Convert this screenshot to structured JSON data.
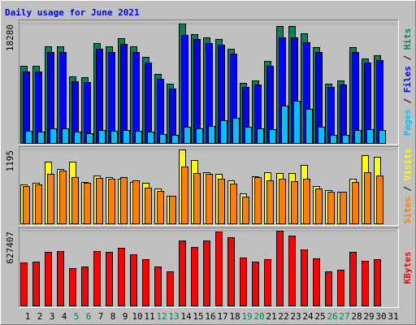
{
  "chart_data": [
    {
      "type": "bar",
      "title": "Daily usage for June 2021",
      "ylim": [
        0,
        18280
      ],
      "yticks": [
        18280
      ],
      "legend_separator": "/",
      "series": [
        {
          "name": "Hits",
          "color": "#00805c",
          "values": [
            11814,
            11814,
            14798,
            14798,
            10197,
            10073,
            15296,
            14798,
            16042,
            14798,
            13182,
            10570,
            9078,
            18280,
            16664,
            16166,
            15917,
            14425,
            9202,
            9575,
            12560,
            17907,
            17907,
            16788,
            14674,
            9078,
            9575,
            14674,
            12933,
            13430,
            null
          ]
        },
        {
          "name": "Files",
          "color": "#0000ff",
          "values": [
            10943,
            10943,
            13928,
            13928,
            9451,
            9327,
            14425,
            13928,
            15171,
            13928,
            12311,
            9824,
            8332,
            16539,
            15917,
            15296,
            15047,
            13679,
            8580,
            8953,
            11814,
            16166,
            16166,
            15420,
            13928,
            8580,
            8953,
            13928,
            12311,
            12684,
            null
          ]
        },
        {
          "name": "Pages",
          "color": "#00c0ff",
          "values": [
            1865,
            1741,
            2238,
            2238,
            1741,
            1492,
            1990,
            1865,
            1990,
            1865,
            1741,
            1368,
            1244,
            2487,
            2238,
            2611,
            3482,
            3855,
            2487,
            2238,
            2114,
            5720,
            6466,
            5223,
            2487,
            1244,
            1244,
            1990,
            2114,
            1990,
            null
          ]
        }
      ]
    },
    {
      "type": "bar",
      "ylim": [
        0,
        1195
      ],
      "yticks": [
        1195
      ],
      "legend_separator": "/",
      "series": [
        {
          "name": "Visits",
          "color": "#ffff00",
          "values": [
            630,
            657,
            998,
            880,
            998,
            670,
            775,
            749,
            722,
            670,
            657,
            565,
            447,
            1195,
            1024,
            827,
            801,
            696,
            486,
            762,
            827,
            814,
            814,
            946,
            604,
            538,
            512,
            722,
            1103,
            1077,
            null
          ]
        },
        {
          "name": "Sites",
          "color": "#ff8000",
          "values": [
            604,
            630,
            801,
            854,
            749,
            657,
            735,
            722,
            749,
            696,
            578,
            525,
            447,
            919,
            814,
            801,
            722,
            643,
            433,
            749,
            696,
            722,
            683,
            722,
            565,
            512,
            512,
            670,
            827,
            775,
            null
          ]
        }
      ]
    },
    {
      "type": "bar",
      "ylim": [
        0,
        627407
      ],
      "yticks": [
        627407
      ],
      "categories": [
        "1",
        "2",
        "3",
        "4",
        "5",
        "6",
        "7",
        "8",
        "9",
        "10",
        "11",
        "12",
        "13",
        "14",
        "15",
        "16",
        "17",
        "18",
        "19",
        "20",
        "21",
        "22",
        "23",
        "24",
        "25",
        "26",
        "27",
        "28",
        "29",
        "30",
        "31"
      ],
      "category_colors": [
        "#000000",
        "#000000",
        "#000000",
        "#000000",
        "#00805c",
        "#00805c",
        "#000000",
        "#000000",
        "#000000",
        "#000000",
        "#000000",
        "#00805c",
        "#00805c",
        "#000000",
        "#000000",
        "#000000",
        "#000000",
        "#000000",
        "#00805c",
        "#00805c",
        "#000000",
        "#000000",
        "#000000",
        "#000000",
        "#000000",
        "#00805c",
        "#00805c",
        "#000000",
        "#000000",
        "#000000",
        "#000000"
      ],
      "series": [
        {
          "name": "KBytes",
          "color": "#ff0000",
          "values": [
            361439,
            368258,
            450094,
            456913,
            313700,
            327339,
            456913,
            450094,
            484189,
            429634,
            388716,
            327339,
            286423,
            545567,
            491011,
            545567,
            620583,
            572846,
            402355,
            368258,
            388716,
            627407,
            586485,
            470551,
            395537,
            286423,
            300062,
            450094,
            375078,
            388716,
            null
          ]
        }
      ]
    }
  ]
}
